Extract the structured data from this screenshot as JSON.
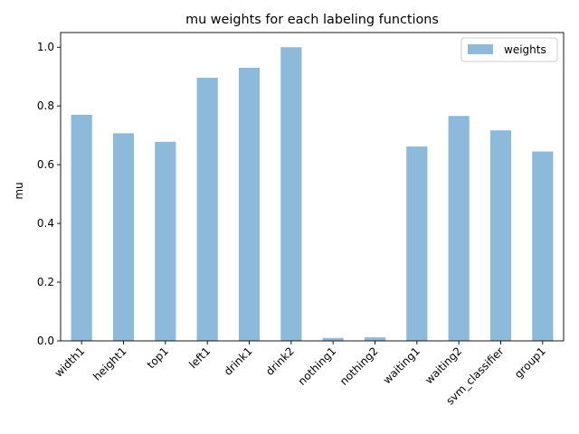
{
  "chart_data": {
    "type": "bar",
    "title": "mu weights for each labeling functions",
    "xlabel": "",
    "ylabel": "mu",
    "categories": [
      "width1",
      "height1",
      "top1",
      "left1",
      "drink1",
      "drink2",
      "nothing1",
      "nothing2",
      "waiting1",
      "waiting2",
      "svm_classifier",
      "group1"
    ],
    "series": [
      {
        "name": "weights",
        "values": [
          0.77,
          0.707,
          0.678,
          0.896,
          0.93,
          1.0,
          0.01,
          0.012,
          0.662,
          0.766,
          0.717,
          0.645
        ]
      }
    ],
    "ylim": [
      0,
      1.05
    ],
    "yticks": [
      "0.0",
      "0.2",
      "0.4",
      "0.6",
      "0.8",
      "1.0"
    ],
    "legend_position": "top-right",
    "grid": false,
    "colors": {
      "bar": "#8db9db",
      "axis": "#000000"
    }
  }
}
